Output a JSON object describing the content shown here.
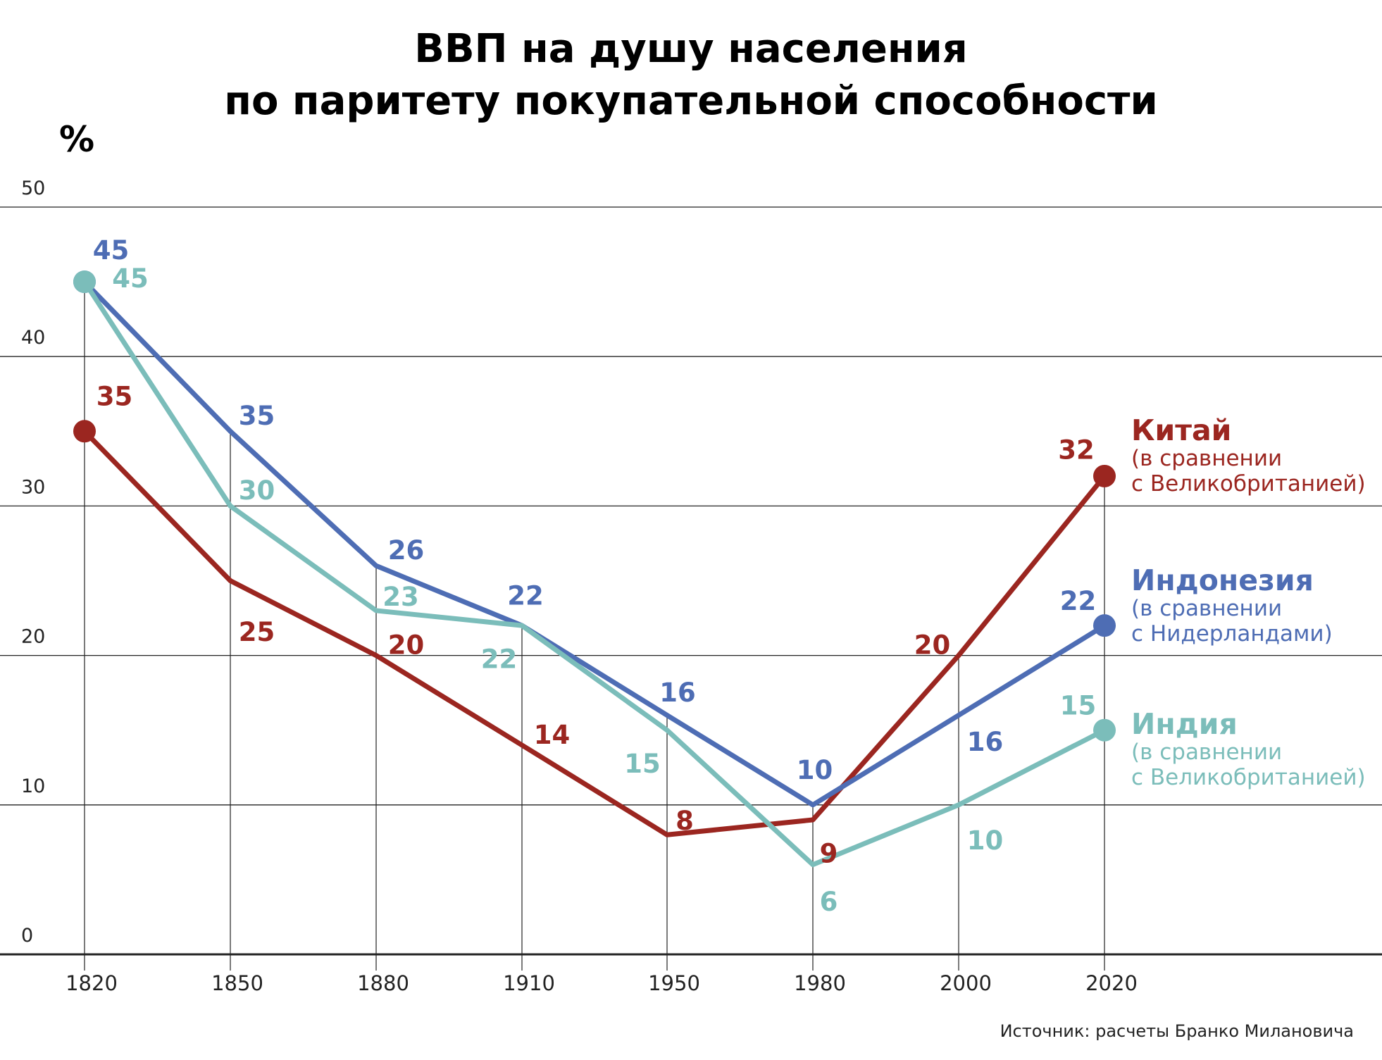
{
  "chart_data": {
    "type": "line",
    "title": [
      "ВВП на душу населения",
      "по паритету покупательной способности"
    ],
    "ylabel": "%",
    "ylim": [
      0,
      50
    ],
    "yticks": [
      "0",
      "10",
      "20",
      "30",
      "40",
      "50"
    ],
    "x": [
      "1820",
      "1850",
      "1880",
      "1910",
      "1950",
      "1980",
      "2000",
      "2020"
    ],
    "grid": true,
    "legend_placement": "right",
    "series": [
      {
        "name": "Китай",
        "sub1": "(в сравнении",
        "sub2": "с Великобританией)",
        "color": "#9b2620",
        "values": [
          35,
          25,
          20,
          14,
          8,
          9,
          20,
          32
        ]
      },
      {
        "name": "Индонезия",
        "sub1": "(в сравнении",
        "sub2": "с Нидерландами)",
        "color": "#4e6db4",
        "values": [
          45,
          35,
          26,
          22,
          16,
          10,
          16,
          22
        ]
      },
      {
        "name": "Индия",
        "sub1": "(в сравнении",
        "sub2": "с Великобританией)",
        "color": "#7bbdba",
        "values": [
          45,
          30,
          23,
          22,
          15,
          6,
          10,
          15
        ]
      }
    ],
    "source": "Источник: расчеты Бранко Милановича"
  }
}
